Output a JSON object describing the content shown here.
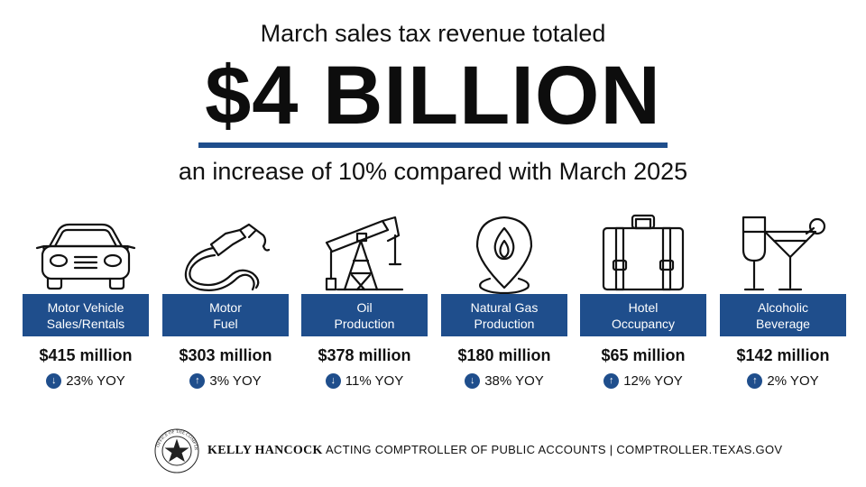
{
  "header": {
    "headline": "March sales tax revenue totaled",
    "amount": "$4 BILLION",
    "subline": "an increase of 10% compared with March 2025"
  },
  "colors": {
    "navy": "#1f4e8c",
    "text": "#111111"
  },
  "categories": [
    {
      "icon": "car-icon",
      "label_line1": "Motor Vehicle",
      "label_line2": "Sales/Rentals",
      "amount": "$415 million",
      "direction": "down",
      "direction_glyph": "↓",
      "yoy": "23% YOY"
    },
    {
      "icon": "fuel-nozzle-icon",
      "label_line1": "Motor",
      "label_line2": "Fuel",
      "amount": "$303 million",
      "direction": "up",
      "direction_glyph": "↑",
      "yoy": "3% YOY"
    },
    {
      "icon": "oil-pump-icon",
      "label_line1": "Oil",
      "label_line2": "Production",
      "amount": "$378 million",
      "direction": "down",
      "direction_glyph": "↓",
      "yoy": "11% YOY"
    },
    {
      "icon": "gas-flame-pin-icon",
      "label_line1": "Natural Gas",
      "label_line2": "Production",
      "amount": "$180 million",
      "direction": "down",
      "direction_glyph": "↓",
      "yoy": "38% YOY"
    },
    {
      "icon": "suitcase-icon",
      "label_line1": "Hotel",
      "label_line2": "Occupancy",
      "amount": "$65 million",
      "direction": "up",
      "direction_glyph": "↑",
      "yoy": "12% YOY"
    },
    {
      "icon": "cocktail-glasses-icon",
      "label_line1": "Alcoholic",
      "label_line2": "Beverage",
      "amount": "$142 million",
      "direction": "up",
      "direction_glyph": "↑",
      "yoy": "2% YOY"
    }
  ],
  "footer": {
    "seal_text": "OFFICE OF THE COMPTROLLER · TEXAS",
    "name": "KELLY HANCOCK",
    "title": "ACTING COMPTROLLER OF PUBLIC ACCOUNTS",
    "separator": "|",
    "website": "COMPTROLLER.TEXAS.GOV"
  }
}
